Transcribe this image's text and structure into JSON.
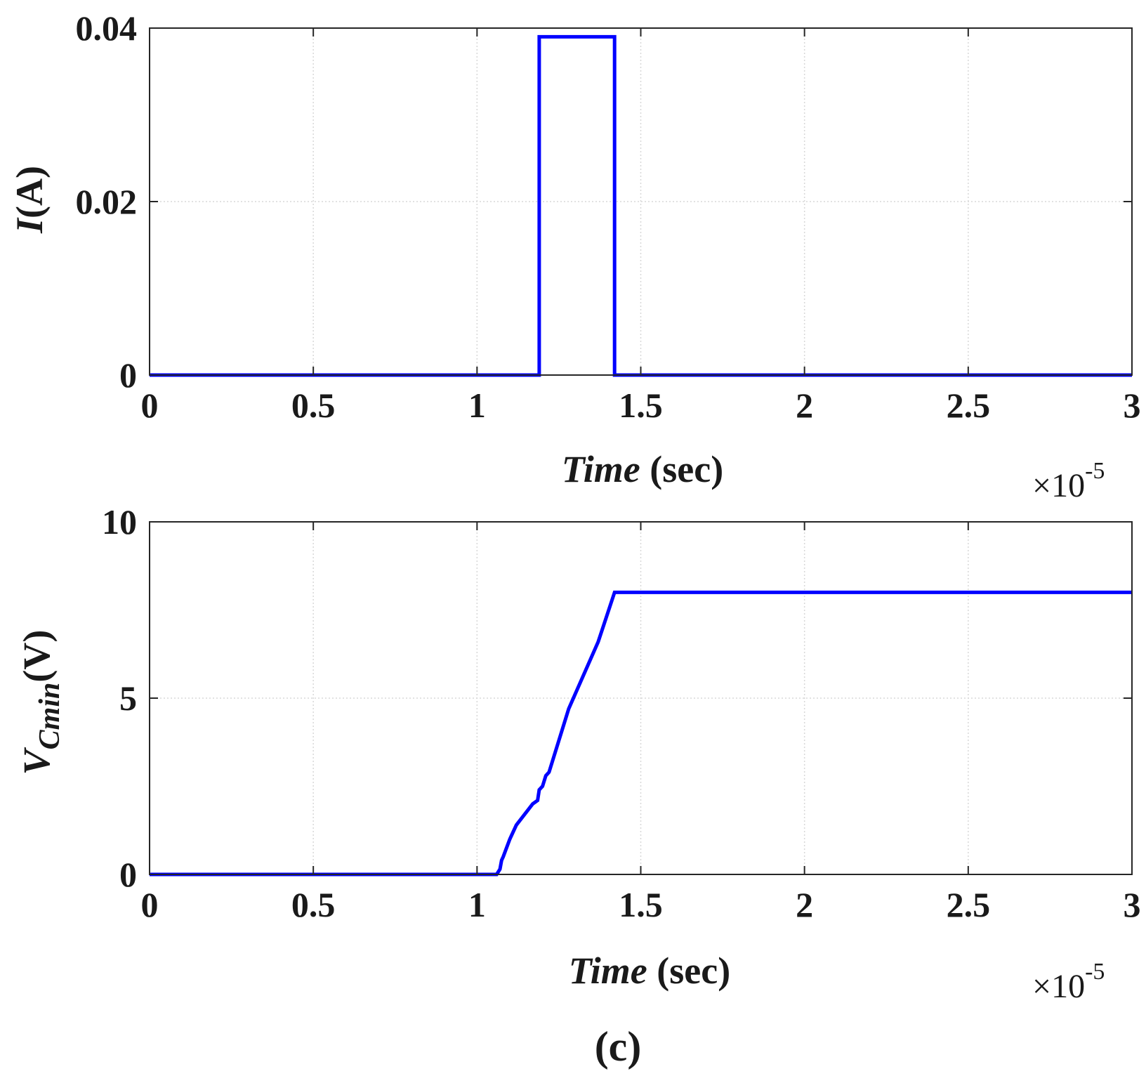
{
  "panel_label": "(c)",
  "chart_data": [
    {
      "type": "line",
      "title": "",
      "xlabel_italic": "Time",
      "xlabel_rest": " (sec)",
      "ylabel_italic": "I",
      "ylabel_rest": "(A)",
      "x_multiplier_base": "×10",
      "x_multiplier_exp": "-5",
      "xlim": [
        0,
        3
      ],
      "ylim": [
        0,
        0.04
      ],
      "xticks": [
        0,
        0.5,
        1,
        1.5,
        2,
        2.5,
        3
      ],
      "xtick_labels": [
        "0",
        "0.5",
        "1",
        "1.5",
        "2",
        "2.5",
        "3"
      ],
      "yticks": [
        0,
        0.02,
        0.04
      ],
      "ytick_labels": [
        "0",
        "0.02",
        "0.04"
      ],
      "grid": true,
      "color": "#0000ff",
      "series": [
        {
          "name": "I",
          "x": [
            0,
            1.19,
            1.19,
            1.42,
            1.42,
            3
          ],
          "y": [
            0,
            0,
            0.039,
            0.039,
            0,
            0
          ]
        }
      ]
    },
    {
      "type": "line",
      "title": "",
      "xlabel_italic": "Time",
      "xlabel_rest": " (sec)",
      "ylabel_italic": "V",
      "ylabel_sub": "Cmin",
      "ylabel_rest": "(V)",
      "x_multiplier_base": "×10",
      "x_multiplier_exp": "-5",
      "xlim": [
        0,
        3
      ],
      "ylim": [
        0,
        10
      ],
      "xticks": [
        0,
        0.5,
        1,
        1.5,
        2,
        2.5,
        3
      ],
      "xtick_labels": [
        "0",
        "0.5",
        "1",
        "1.5",
        "2",
        "2.5",
        "3"
      ],
      "yticks": [
        0,
        5,
        10
      ],
      "ytick_labels": [
        "0",
        "5",
        "10"
      ],
      "grid": true,
      "color": "#0000ff",
      "series": [
        {
          "name": "V_Cmin",
          "x": [
            0,
            1.06,
            1.07,
            1.075,
            1.08,
            1.1,
            1.12,
            1.17,
            1.185,
            1.19,
            1.2,
            1.21,
            1.22,
            1.28,
            1.37,
            1.42,
            3
          ],
          "y": [
            0,
            0,
            0.15,
            0.4,
            0.5,
            1.0,
            1.4,
            2.0,
            2.1,
            2.4,
            2.5,
            2.8,
            2.9,
            4.7,
            6.6,
            8.0,
            8.0
          ]
        }
      ]
    }
  ]
}
